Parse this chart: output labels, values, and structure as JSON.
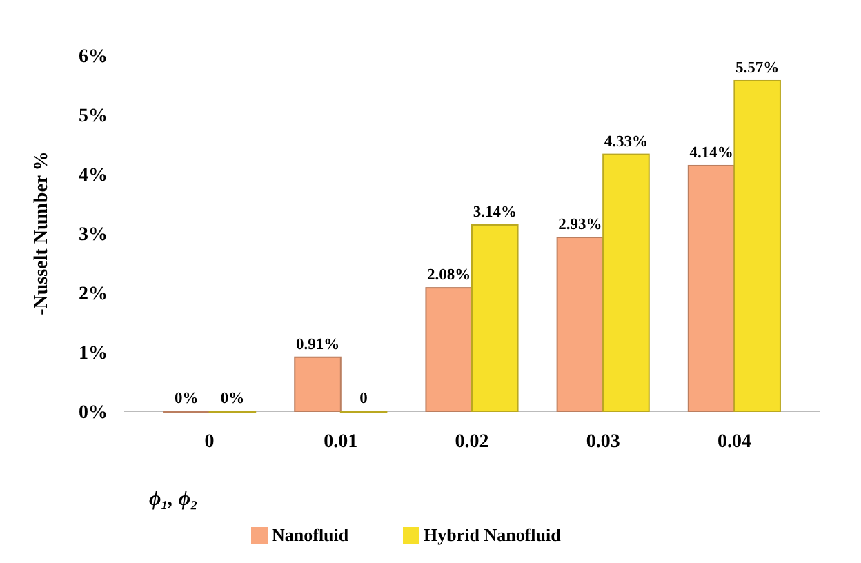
{
  "chart_data": {
    "type": "bar",
    "xlabel": "ϕ₁, ϕ₂",
    "ylabel": "-Nusselt Number %",
    "categories": [
      "0",
      "0.01",
      "0.02",
      "0.03",
      "0.04"
    ],
    "series": [
      {
        "name": "Nanofluid",
        "color": "#f9a77e",
        "values": [
          0,
          0.91,
          2.08,
          2.93,
          4.14
        ],
        "value_labels": [
          "0%",
          "0.91%",
          "2.08%",
          "2.93%",
          "4.14%"
        ]
      },
      {
        "name": "Hybrid Nanofluid",
        "color": "#f7e02a",
        "values": [
          0,
          0,
          3.14,
          4.33,
          5.57
        ],
        "value_labels": [
          "0%",
          "0",
          "3.14%",
          "4.33%",
          "5.57%"
        ]
      }
    ],
    "ylim": [
      0,
      6
    ],
    "yticks": [
      {
        "value": 0,
        "label": "0%"
      },
      {
        "value": 1,
        "label": "1%"
      },
      {
        "value": 2,
        "label": "2%"
      },
      {
        "value": 3,
        "label": "3%"
      },
      {
        "value": 4,
        "label": "4%"
      },
      {
        "value": 5,
        "label": "5%"
      },
      {
        "value": 6,
        "label": "6%"
      }
    ],
    "grid": false,
    "legend": "bottom"
  }
}
